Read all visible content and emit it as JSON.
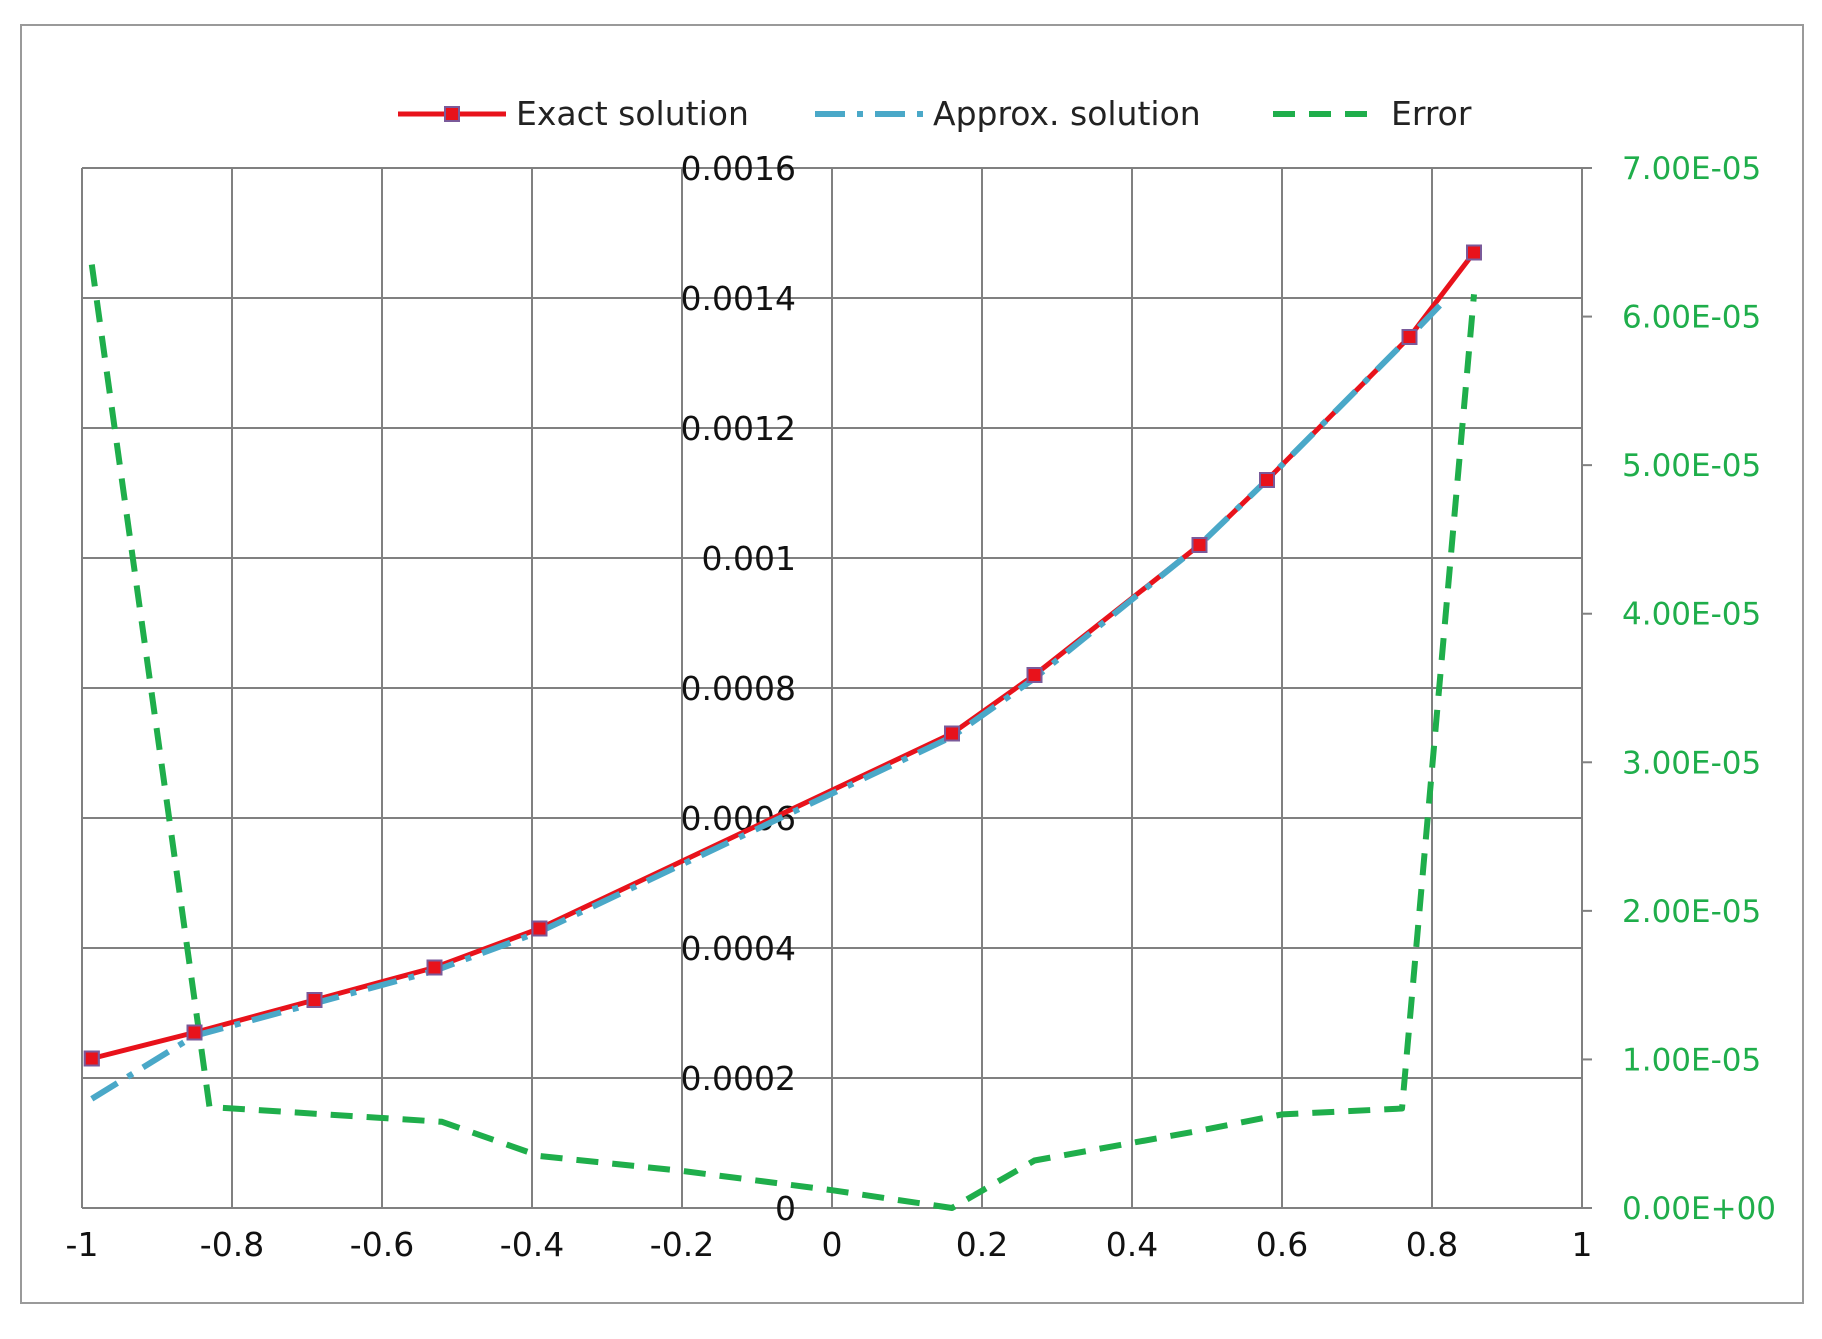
{
  "chart_data": {
    "type": "line",
    "title": "",
    "xlabel": "",
    "ylabel": "",
    "y2label": "",
    "xlim": [
      -1,
      1
    ],
    "ylim": [
      0,
      0.0016
    ],
    "y2lim": [
      0,
      7e-05
    ],
    "x_ticks": [
      "-1",
      "-0.8",
      "-0.6",
      "-0.4",
      "-0.2",
      "0",
      "0.2",
      "0.4",
      "0.6",
      "0.8",
      "1"
    ],
    "x_tick_values": [
      -1,
      -0.8,
      -0.6,
      -0.4,
      -0.2,
      0,
      0.2,
      0.4,
      0.6,
      0.8,
      1
    ],
    "y_ticks": [
      "0",
      "0.0002",
      "0.0004",
      "0.0006",
      "0.0008",
      "0.001",
      "0.0012",
      "0.0014",
      "0.0016"
    ],
    "y_tick_values": [
      0,
      0.0002,
      0.0004,
      0.0006,
      0.0008,
      0.001,
      0.0012,
      0.0014,
      0.0016
    ],
    "y2_ticks": [
      "0.00E+00",
      "1.00E-05",
      "2.00E-05",
      "3.00E-05",
      "4.00E-05",
      "5.00E-05",
      "6.00E-05",
      "7.00E-05"
    ],
    "y2_tick_values": [
      0,
      1e-05,
      2e-05,
      3e-05,
      4e-05,
      5e-05,
      6e-05,
      7e-05
    ],
    "grid": true,
    "legend_position": "top",
    "series": [
      {
        "name": "Exact solution",
        "axis": "left",
        "color": "#e8121b",
        "style": "solid-with-square-markers",
        "x": [
          -0.987,
          -0.85,
          -0.69,
          -0.53,
          -0.39,
          0.16,
          0.27,
          0.49,
          0.58,
          0.77,
          0.856
        ],
        "y": [
          0.00023,
          0.00027,
          0.00032,
          0.00037,
          0.00043,
          0.00073,
          0.00082,
          0.00102,
          0.00112,
          0.00134,
          0.00147
        ]
      },
      {
        "name": "Approx. solution",
        "axis": "left",
        "color": "#4aa8c8",
        "style": "dash-dot",
        "x": [
          -0.987,
          -0.85,
          -0.69,
          -0.53,
          -0.39,
          0.16,
          0.27,
          0.49,
          0.58,
          0.77,
          0.82
        ],
        "y": [
          0.000168,
          0.000265,
          0.000315,
          0.000365,
          0.000425,
          0.000725,
          0.000815,
          0.00102,
          0.00112,
          0.00134,
          0.0014
        ]
      },
      {
        "name": "Error",
        "axis": "right",
        "color": "#1fae4b",
        "style": "dashed",
        "x": [
          -0.987,
          -0.83,
          -0.52,
          -0.39,
          -0.2,
          0.0,
          0.16,
          0.27,
          0.49,
          0.6,
          0.76,
          0.856
        ],
        "y": [
          6.35e-05,
          6.8e-06,
          5.8e-06,
          3.5e-06,
          2.5e-06,
          1.2e-06,
          0.0,
          3.2e-06,
          5.2e-06,
          6.3e-06,
          6.7e-06,
          6.15e-05
        ]
      }
    ]
  },
  "colors": {
    "right_axis_text": "#1fae4b",
    "grid": "#808080",
    "frame": "#9a9a9a"
  }
}
